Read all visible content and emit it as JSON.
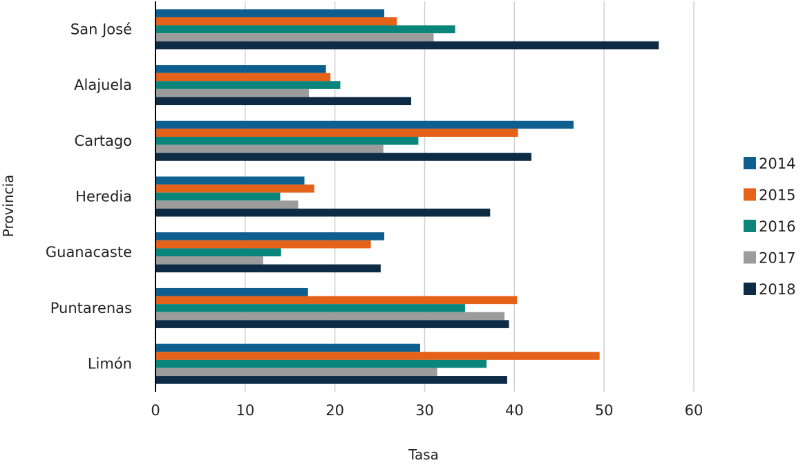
{
  "chart_data": {
    "type": "bar",
    "orientation": "horizontal",
    "categories": [
      "San José",
      "Alajuela",
      "Cartago",
      "Heredia",
      "Guanacaste",
      "Puntarenas",
      "Limón"
    ],
    "series": [
      {
        "name": "2014",
        "color": "#0e5f8f",
        "values": [
          25.5,
          19.0,
          46.6,
          16.6,
          25.5,
          17.0,
          29.5
        ]
      },
      {
        "name": "2015",
        "color": "#e4621a",
        "values": [
          26.9,
          19.5,
          40.4,
          17.7,
          24.0,
          40.3,
          49.5
        ]
      },
      {
        "name": "2016",
        "color": "#0a857c",
        "values": [
          33.4,
          20.6,
          29.3,
          13.9,
          14.0,
          34.5,
          36.9
        ]
      },
      {
        "name": "2017",
        "color": "#9c9c9c",
        "values": [
          31.0,
          17.1,
          25.4,
          15.9,
          12.0,
          38.9,
          31.4
        ]
      },
      {
        "name": "2018",
        "color": "#0d2b45",
        "values": [
          56.1,
          28.5,
          41.9,
          37.3,
          25.1,
          39.4,
          39.2
        ]
      }
    ],
    "xlabel": "Tasa",
    "ylabel": "Provincia",
    "xlim": [
      0,
      60
    ],
    "xticks": [
      "0",
      "10",
      "20",
      "30",
      "40",
      "50",
      "60"
    ],
    "grid": "vertical",
    "legend_position": "right"
  }
}
